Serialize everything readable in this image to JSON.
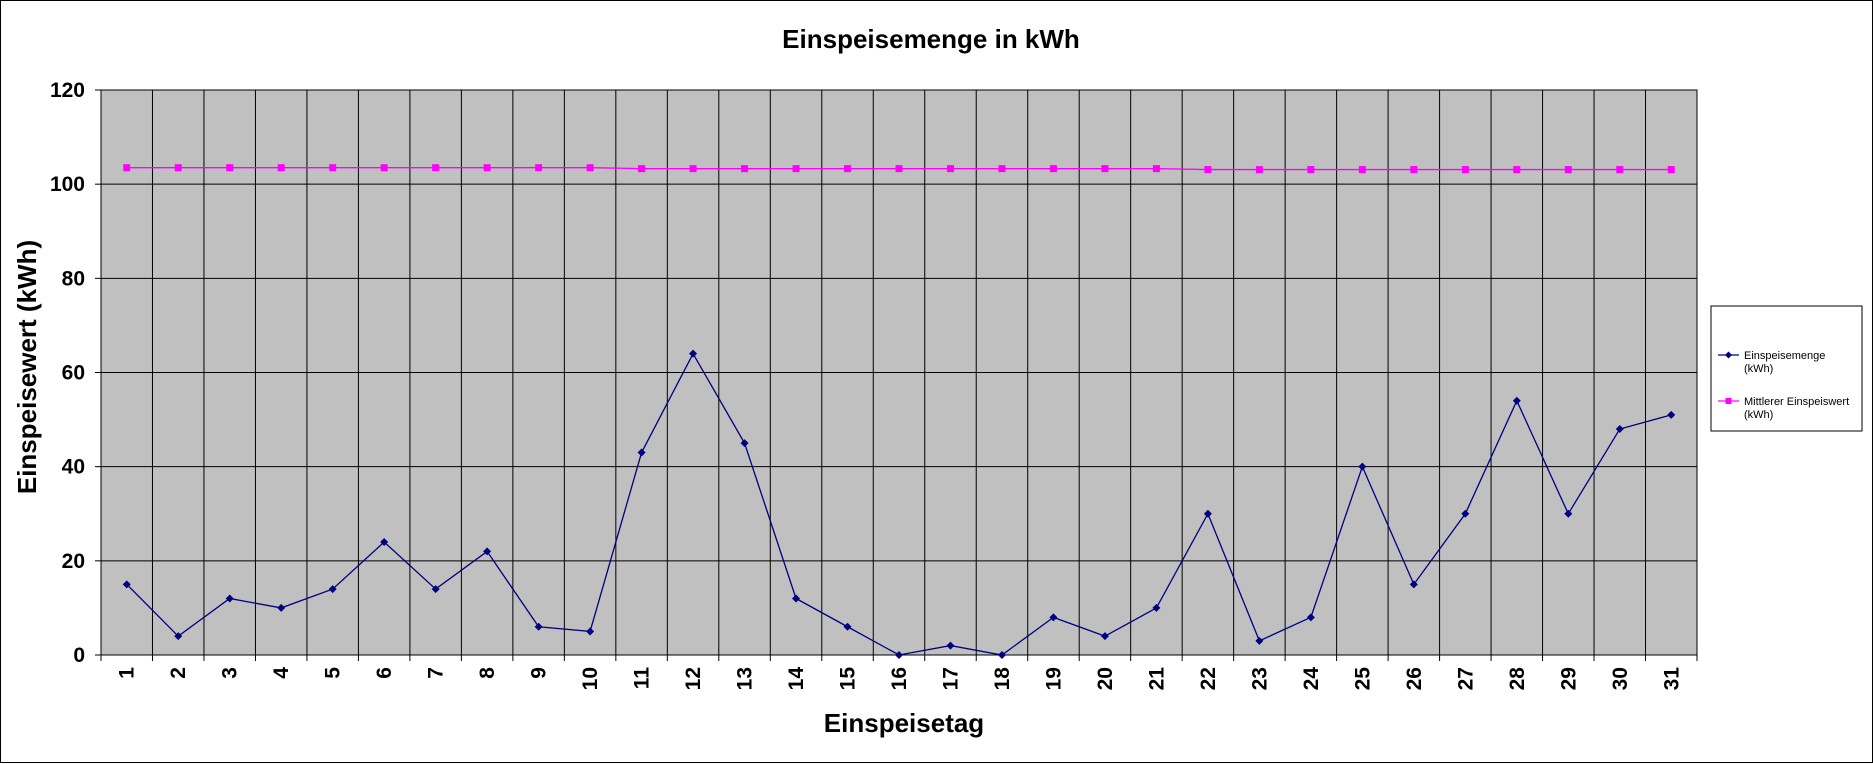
{
  "chart_data": {
    "type": "line",
    "title": "Einspeisemenge in kWh",
    "xlabel": "Einspeisetag",
    "ylabel": "Einspeisewert  (kWh)",
    "categories": [
      "1",
      "2",
      "3",
      "4",
      "5",
      "6",
      "7",
      "8",
      "9",
      "10",
      "11",
      "12",
      "13",
      "14",
      "15",
      "16",
      "17",
      "18",
      "19",
      "20",
      "21",
      "22",
      "23",
      "24",
      "25",
      "26",
      "27",
      "28",
      "29",
      "30",
      "31"
    ],
    "ylim": [
      0,
      120
    ],
    "yticks": [
      "0",
      "20",
      "40",
      "60",
      "80",
      "100",
      "120"
    ],
    "grid": true,
    "plot_background": "#c0c0c0",
    "legend_position": "right",
    "series": [
      {
        "name": "Einspeisemenge (kWh)",
        "legend_lines": [
          "Einspeisemenge",
          "(kWh)"
        ],
        "color": "#000080",
        "marker": "diamond",
        "values": [
          15,
          4,
          12,
          10,
          14,
          24,
          14,
          22,
          6,
          5,
          43,
          64,
          45,
          12,
          6,
          0,
          2,
          0,
          8,
          4,
          10,
          30,
          3,
          8,
          40,
          15,
          30,
          54,
          30,
          48,
          51
        ]
      },
      {
        "name": "Mittlerer Einspeiswert (kWh)",
        "legend_lines": [
          "Mittlerer Einspeiswert",
          "(kWh)"
        ],
        "color": "#ff00ff",
        "marker": "square",
        "values": [
          103.5,
          103.5,
          103.5,
          103.5,
          103.5,
          103.5,
          103.5,
          103.5,
          103.5,
          103.5,
          103.3,
          103.3,
          103.3,
          103.3,
          103.3,
          103.3,
          103.3,
          103.3,
          103.3,
          103.3,
          103.3,
          103.1,
          103.1,
          103.1,
          103.1,
          103.1,
          103.1,
          103.1,
          103.1,
          103.1,
          103.1
        ]
      }
    ]
  }
}
